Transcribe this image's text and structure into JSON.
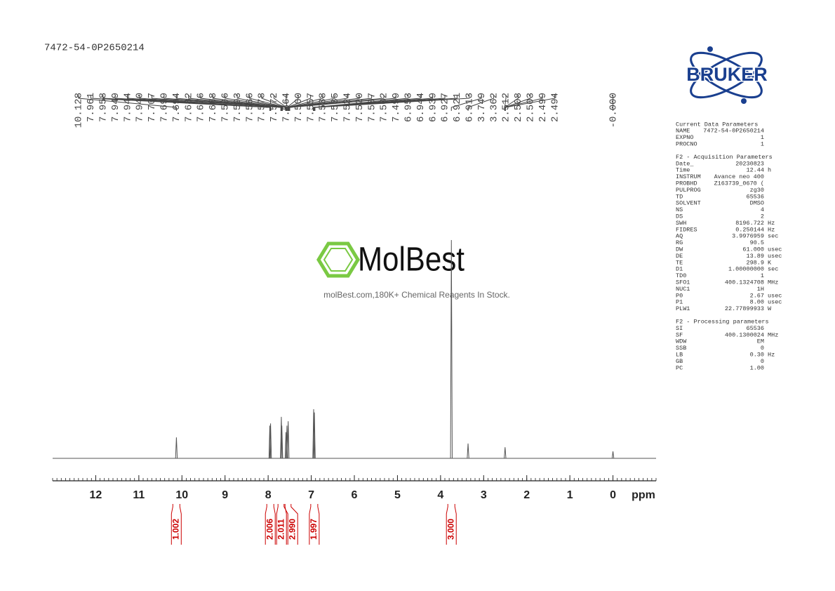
{
  "chart_data": {
    "type": "nmr",
    "title": "7472-54-0P2650214",
    "xlabel": "ppm",
    "xlim": [
      13,
      -1
    ],
    "xticks": [
      12,
      11,
      10,
      9,
      8,
      7,
      6,
      5,
      4,
      3,
      2,
      1,
      0
    ],
    "ylim": [
      0,
      100
    ],
    "color": "#555555",
    "peak_labels": [
      10.128,
      7.961,
      7.958,
      7.949,
      7.944,
      {
        "value": 7.94,
        "label": "7.940"
      },
      7.707,
      7.699,
      7.694,
      7.682,
      7.676,
      7.668,
      7.596,
      7.593,
      7.586,
      7.578,
      7.572,
      7.564,
      {
        "value": 7.56,
        "label": "7.560"
      },
      7.557,
      7.538,
      7.535,
      7.524,
      {
        "value": 7.52,
        "label": "7.520"
      },
      7.507,
      7.502,
      7.499,
      6.953,
      6.944,
      6.939,
      6.927,
      6.921,
      6.913,
      3.749,
      3.362,
      2.512,
      2.508,
      2.503,
      2.499,
      2.494,
      {
        "value": 0,
        "label": "-0.000"
      }
    ],
    "peaks": {
      "x": [
        10.128,
        7.961,
        7.944,
        7.694,
        7.682,
        7.586,
        7.564,
        7.535,
        6.944,
        6.927,
        3.749,
        3.362,
        2.503,
        0
      ],
      "values": [
        9.6,
        15,
        16,
        19,
        15,
        12,
        15,
        17,
        22.5,
        21,
        100,
        6.8,
        5.1,
        3.2
      ]
    },
    "integrals": {
      "x": [
        10.13,
        7.95,
        7.69,
        7.55,
        6.93,
        3.75
      ],
      "values": [
        1.002,
        2.006,
        2.011,
        2.99,
        1.997,
        3
      ],
      "value_labels": [
        "1.002",
        "2.006",
        "2.011",
        "2.990",
        "1.997",
        "3.000"
      ],
      "color": "#cc0000"
    }
  },
  "watermark": {
    "brand": "MolBest",
    "tagline": "molBest.com,180K+ Chemical Reagents In Stock."
  },
  "logo": "BRUKER",
  "parameters": [
    {
      "title": "Current Data Parameters",
      "rows": [
        [
          "NAME",
          "7472-54-0P2650214"
        ],
        [
          "EXPNO",
          "1"
        ],
        [
          "PROCNO",
          "1"
        ]
      ]
    },
    {
      "title": "F2 - Acquisition Parameters",
      "rows": [
        [
          "Date_",
          "20230823"
        ],
        [
          "Time",
          "12.44",
          "h"
        ],
        [
          "INSTRUM",
          "Avance neo 400"
        ],
        [
          "PROBHD",
          "Z163739_0670 ("
        ],
        [
          "PULPROG",
          "zg30"
        ],
        [
          "TD",
          "65536"
        ],
        [
          "SOLVENT",
          "DMSO"
        ],
        [
          "NS",
          "4"
        ],
        [
          "DS",
          "2"
        ],
        [
          "SWH",
          "8196.722",
          "Hz"
        ],
        [
          "FIDRES",
          "0.250144",
          "Hz"
        ],
        [
          "AQ",
          "3.9976959",
          "sec"
        ],
        [
          "RG",
          "90.5"
        ],
        [
          "DW",
          "61.000",
          "usec"
        ],
        [
          "DE",
          "13.89",
          "usec"
        ],
        [
          "TE",
          "298.9",
          "K"
        ],
        [
          "D1",
          "1.00000000",
          "sec"
        ],
        [
          "TD0",
          "1"
        ],
        [
          "SFO1",
          "400.1324708",
          "MHz"
        ],
        [
          "NUC1",
          "1H"
        ],
        [
          "P0",
          "2.67",
          "usec"
        ],
        [
          "P1",
          "8.00",
          "usec"
        ],
        [
          "PLW1",
          "22.77899933",
          "W"
        ]
      ]
    },
    {
      "title": "F2 - Processing parameters",
      "rows": [
        [
          "SI",
          "65536"
        ],
        [
          "SF",
          "400.1300024",
          "MHz"
        ],
        [
          "WDW",
          "EM"
        ],
        [
          "SSB",
          "0"
        ],
        [
          "LB",
          "0.30",
          "Hz"
        ],
        [
          "GB",
          "0"
        ],
        [
          "PC",
          "1.00"
        ]
      ]
    }
  ]
}
